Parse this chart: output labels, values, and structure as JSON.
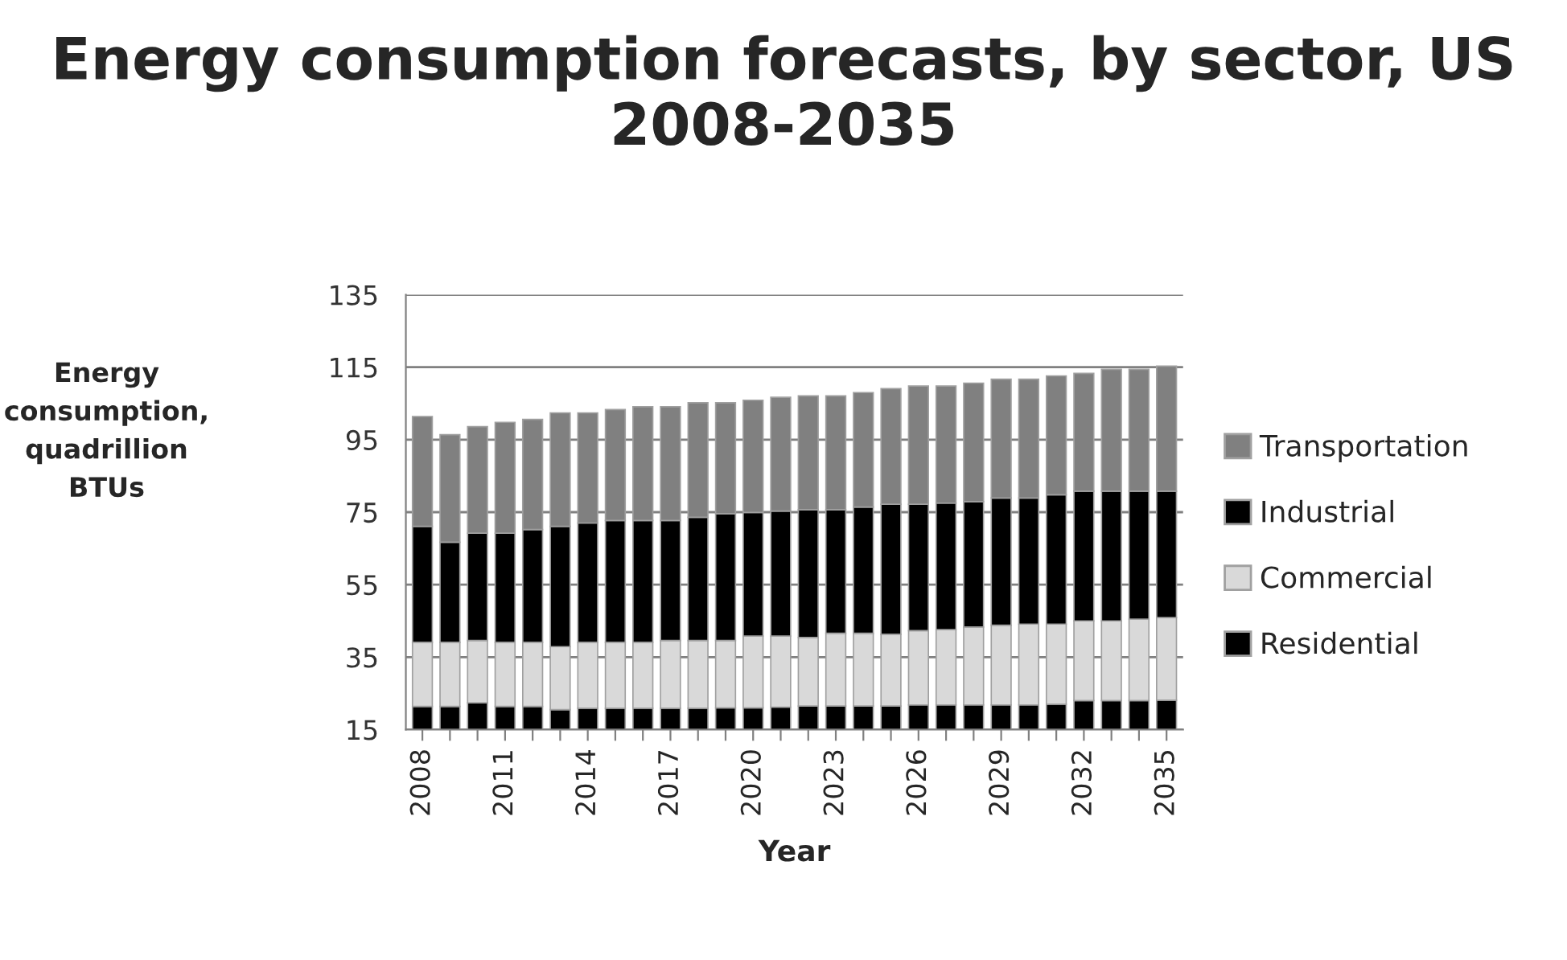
{
  "chart_data": {
    "type": "bar",
    "stacked": true,
    "title": "Energy consumption forecasts, by sector, US 2008-2035",
    "xlabel": "Year",
    "ylabel": "Energy consumption, quadrillion BTUs",
    "categories": [
      "2008",
      null,
      null,
      "2011",
      null,
      null,
      "2014",
      null,
      null,
      "2017",
      null,
      null,
      "2020",
      null,
      null,
      "2023",
      null,
      null,
      "2026",
      null,
      null,
      "2029",
      null,
      null,
      "2032",
      null,
      null,
      "2035"
    ],
    "series": [
      {
        "name": "Residential",
        "color": "#000000",
        "values": [
          21.4,
          21.4,
          22.4,
          21.4,
          21.4,
          20.5,
          20.9,
          20.9,
          20.9,
          20.9,
          20.9,
          21.0,
          21.0,
          21.2,
          21.5,
          21.5,
          21.5,
          21.5,
          21.8,
          21.8,
          21.8,
          21.8,
          21.8,
          22.0,
          23.0,
          23.0,
          23.0,
          23.1
        ]
      },
      {
        "name": "Commercial",
        "color": "#d9d9d9",
        "values": [
          17.7,
          17.7,
          17.2,
          17.7,
          17.7,
          17.4,
          18.2,
          18.2,
          18.2,
          18.7,
          18.7,
          18.6,
          19.8,
          19.6,
          18.9,
          20.1,
          20.1,
          19.8,
          20.5,
          20.8,
          21.5,
          22.0,
          22.3,
          22.1,
          22.0,
          22.0,
          22.5,
          22.8
        ]
      },
      {
        "name": "Industrial",
        "color": "#000000",
        "values": [
          32.0,
          27.6,
          29.6,
          30.1,
          31.1,
          33.2,
          32.9,
          33.6,
          33.6,
          33.1,
          34.0,
          35.0,
          34.1,
          34.5,
          35.3,
          34.1,
          34.8,
          35.9,
          34.9,
          34.9,
          34.6,
          35.1,
          34.8,
          35.7,
          35.8,
          35.8,
          35.3,
          34.9
        ]
      },
      {
        "name": "Transportation",
        "color": "#808080",
        "values": [
          30.3,
          29.7,
          29.4,
          30.6,
          30.4,
          31.3,
          30.4,
          30.6,
          31.4,
          31.4,
          31.6,
          30.6,
          31.0,
          31.4,
          31.4,
          31.4,
          31.6,
          31.9,
          32.6,
          32.3,
          32.7,
          32.8,
          32.8,
          32.8,
          32.5,
          33.6,
          33.6,
          34.5
        ]
      }
    ],
    "ylim": [
      15,
      135
    ],
    "yticks": [
      15,
      35,
      55,
      75,
      95,
      115,
      135
    ],
    "grid": "y",
    "legend": "right"
  }
}
